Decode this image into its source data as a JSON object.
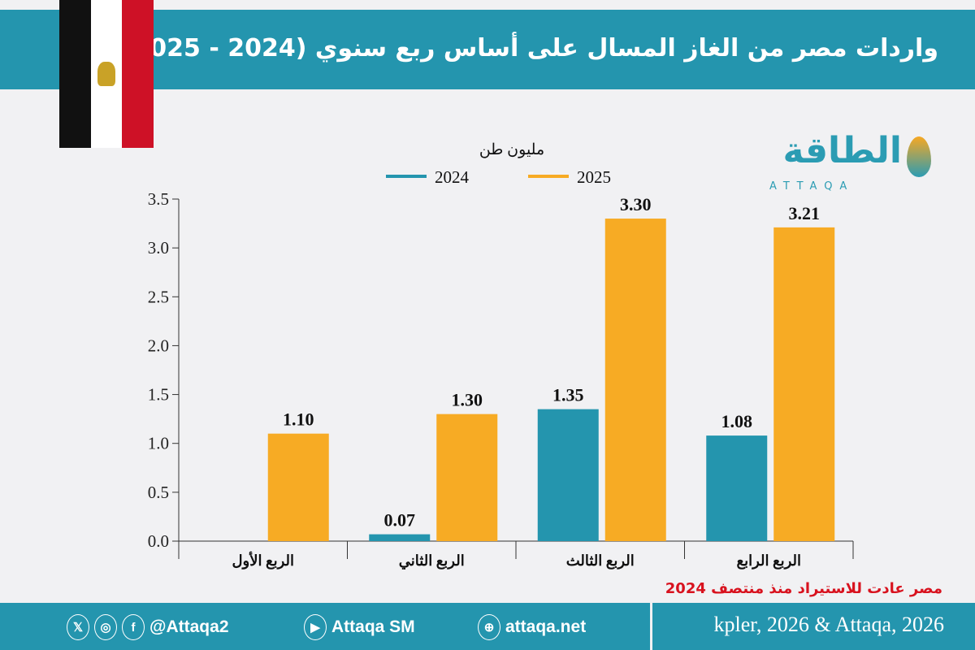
{
  "header": {
    "title": "واردات مصر من الغاز المسال على أساس ربع سنوي (2024 - 2025)"
  },
  "logo": {
    "arabic": "الطاقة",
    "english": "ATTAQA"
  },
  "note": "مصر عادت للاستيراد منذ منتصف 2024",
  "footer": {
    "social_handle": "@Attaqa2",
    "youtube": "Attaqa SM",
    "website": "attaqa.net",
    "source": "kpler, 2026 & Attaqa, 2026",
    "icons": [
      "x-icon",
      "instagram-icon",
      "facebook-icon",
      "youtube-icon",
      "globe-icon"
    ]
  },
  "colors": {
    "2024": "#2495ae",
    "2025": "#f7ab24",
    "header": "#2495ae",
    "note": "#d8121e"
  },
  "chart_data": {
    "type": "bar",
    "ylabel": "مليون طن",
    "categories": [
      "الربع الأول",
      "الربع الثاني",
      "الربع الثالث",
      "الربع الرابع"
    ],
    "series": [
      {
        "name": "2024",
        "values": [
          null,
          0.07,
          1.35,
          1.08
        ],
        "labels": [
          "",
          "0.07",
          "1.35",
          "1.08"
        ]
      },
      {
        "name": "2025",
        "values": [
          1.1,
          1.3,
          3.3,
          3.21
        ],
        "labels": [
          "1.10",
          "1.30",
          "3.30",
          "3.21"
        ]
      }
    ],
    "ylim": [
      0,
      3.5
    ],
    "yticks": [
      "0.0",
      "0.5",
      "1.0",
      "1.5",
      "2.0",
      "2.5",
      "3.0",
      "3.5"
    ],
    "grid": false,
    "legend": "top"
  }
}
